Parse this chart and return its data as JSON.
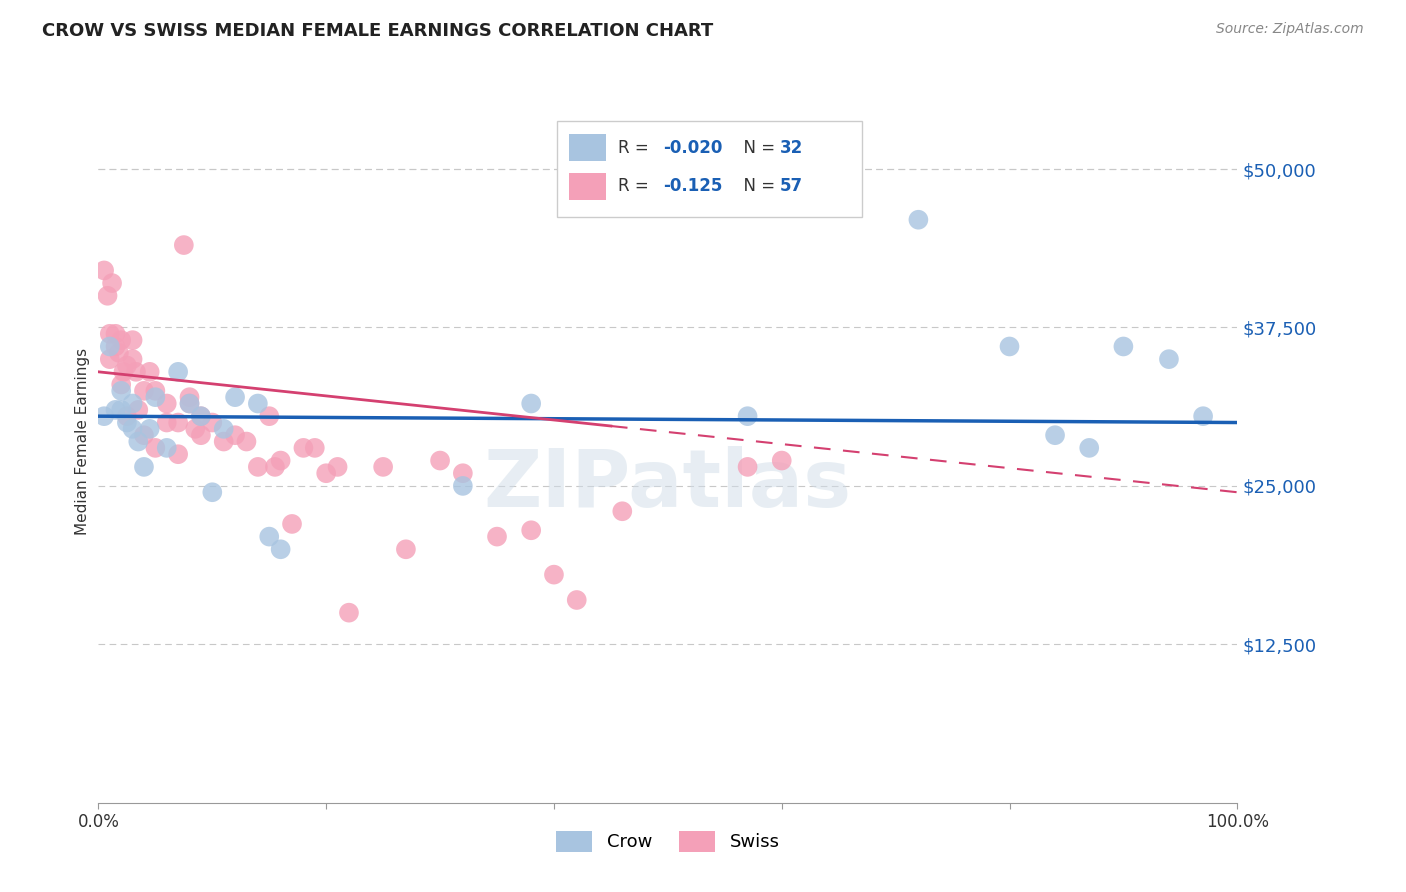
{
  "title": "CROW VS SWISS MEDIAN FEMALE EARNINGS CORRELATION CHART",
  "source": "Source: ZipAtlas.com",
  "ylabel": "Median Female Earnings",
  "ytick_labels": [
    "$12,500",
    "$25,000",
    "$37,500",
    "$50,000"
  ],
  "ytick_values": [
    12500,
    25000,
    37500,
    50000
  ],
  "ylim": [
    0,
    57000
  ],
  "xlim": [
    0.0,
    1.0
  ],
  "crow_R": "-0.020",
  "crow_N": "32",
  "swiss_R": "-0.125",
  "swiss_N": "57",
  "crow_color": "#a8c4e0",
  "swiss_color": "#f4a0b8",
  "crow_line_color": "#1a5fb4",
  "swiss_line_color": "#d44070",
  "background_color": "#ffffff",
  "grid_color": "#c8c8c8",
  "watermark": "ZIPatlas",
  "crow_x": [
    0.005,
    0.01,
    0.015,
    0.02,
    0.02,
    0.025,
    0.03,
    0.03,
    0.035,
    0.04,
    0.045,
    0.05,
    0.06,
    0.07,
    0.08,
    0.09,
    0.1,
    0.11,
    0.12,
    0.14,
    0.15,
    0.16,
    0.32,
    0.38,
    0.57,
    0.72,
    0.8,
    0.84,
    0.87,
    0.9,
    0.94,
    0.97
  ],
  "crow_y": [
    30500,
    36000,
    31000,
    32500,
    31000,
    30000,
    31500,
    29500,
    28500,
    26500,
    29500,
    32000,
    28000,
    34000,
    31500,
    30500,
    24500,
    29500,
    32000,
    31500,
    21000,
    20000,
    25000,
    31500,
    30500,
    46000,
    36000,
    29000,
    28000,
    36000,
    35000,
    30500
  ],
  "swiss_x": [
    0.005,
    0.008,
    0.01,
    0.01,
    0.012,
    0.015,
    0.015,
    0.018,
    0.02,
    0.02,
    0.022,
    0.025,
    0.025,
    0.03,
    0.03,
    0.033,
    0.035,
    0.04,
    0.04,
    0.045,
    0.05,
    0.05,
    0.06,
    0.06,
    0.07,
    0.07,
    0.075,
    0.08,
    0.08,
    0.085,
    0.09,
    0.09,
    0.1,
    0.11,
    0.12,
    0.13,
    0.14,
    0.15,
    0.155,
    0.16,
    0.17,
    0.18,
    0.19,
    0.2,
    0.21,
    0.22,
    0.25,
    0.27,
    0.3,
    0.32,
    0.35,
    0.38,
    0.4,
    0.42,
    0.46,
    0.57,
    0.6
  ],
  "swiss_y": [
    42000,
    40000,
    37000,
    35000,
    41000,
    37000,
    36000,
    35500,
    36500,
    33000,
    34000,
    34500,
    30500,
    36500,
    35000,
    34000,
    31000,
    32500,
    29000,
    34000,
    32500,
    28000,
    31500,
    30000,
    30000,
    27500,
    44000,
    32000,
    31500,
    29500,
    30500,
    29000,
    30000,
    28500,
    29000,
    28500,
    26500,
    30500,
    26500,
    27000,
    22000,
    28000,
    28000,
    26000,
    26500,
    15000,
    26500,
    20000,
    27000,
    26000,
    21000,
    21500,
    18000,
    16000,
    23000,
    26500,
    27000
  ]
}
